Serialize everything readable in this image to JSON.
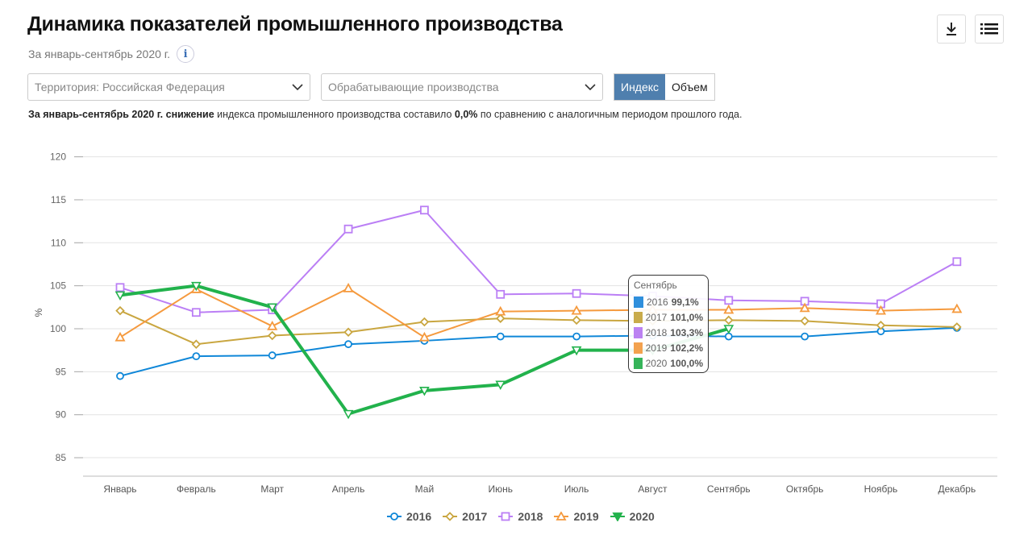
{
  "header": {
    "title": "Динамика показателей промышленного производства",
    "subtitle": "За январь-сентябрь 2020 г.",
    "info_icon": "i"
  },
  "toolbar": {
    "download_icon": "download-icon",
    "menu_icon": "list-icon"
  },
  "filters": {
    "territory": "Территория: Российская  Федерация",
    "industry": "Обрабатывающие производства",
    "mode_options": [
      "Индекс",
      "Объем"
    ],
    "mode_selected": "Индекс"
  },
  "summary": {
    "part1_bold": "За январь-сентябрь 2020 г. снижение",
    "part2": " индекса промышленного производства составило ",
    "part3_bold": "0,0%",
    "part4": " по сравнению с аналогичным периодом прошлого года."
  },
  "tooltip": {
    "title": "Сентябрь",
    "rows": [
      {
        "year": "2016",
        "value": "99,1%",
        "color": "#2f8fdc"
      },
      {
        "year": "2017",
        "value": "101,0%",
        "color": "#c9ab4b"
      },
      {
        "year": "2018",
        "value": "103,3%",
        "color": "#bb82f2"
      },
      {
        "year": "2019",
        "value": "102,2%",
        "color": "#f3a24f"
      },
      {
        "year": "2020",
        "value": "100,0%",
        "color": "#36b45a"
      }
    ]
  },
  "chart_data": {
    "type": "line",
    "title": "Динамика показателей промышленного производства",
    "xlabel": "",
    "ylabel": "%",
    "ylim": [
      82.5,
      120
    ],
    "yticks": [
      85,
      90,
      95,
      100,
      105,
      110,
      115,
      120
    ],
    "grid": true,
    "legend_position": "bottom",
    "categories": [
      "Январь",
      "Февраль",
      "Март",
      "Апрель",
      "Май",
      "Июнь",
      "Июль",
      "Август",
      "Сентябрь",
      "Октябрь",
      "Ноябрь",
      "Декабрь"
    ],
    "series": [
      {
        "name": "2016",
        "color": "#0f87d8",
        "marker": "circle",
        "values": [
          94.5,
          96.8,
          96.9,
          98.2,
          98.6,
          99.1,
          99.1,
          99.2,
          99.1,
          99.1,
          99.7,
          100.1
        ]
      },
      {
        "name": "2017",
        "color": "#c9a640",
        "marker": "diamond",
        "values": [
          102.1,
          98.2,
          99.2,
          99.6,
          100.8,
          101.2,
          101.0,
          100.9,
          101.0,
          100.9,
          100.4,
          100.2
        ]
      },
      {
        "name": "2018",
        "color": "#bb7ff5",
        "marker": "square",
        "values": [
          104.8,
          101.9,
          102.2,
          111.6,
          113.8,
          104.0,
          104.1,
          103.8,
          103.3,
          103.2,
          102.9,
          107.8
        ]
      },
      {
        "name": "2019",
        "color": "#f59a3e",
        "marker": "triangle",
        "values": [
          99.0,
          104.6,
          100.3,
          104.7,
          99.0,
          102.0,
          102.1,
          102.2,
          102.2,
          102.4,
          102.1,
          102.3
        ]
      },
      {
        "name": "2020",
        "color": "#22b24c",
        "marker": "triangle-down",
        "values": [
          103.9,
          105.0,
          102.5,
          90.1,
          92.8,
          93.5,
          97.5,
          97.5,
          100.0
        ]
      }
    ]
  }
}
